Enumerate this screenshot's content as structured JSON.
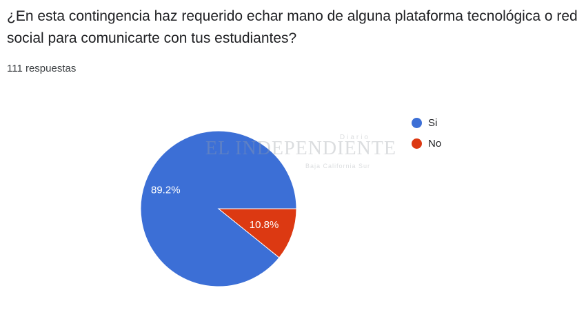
{
  "question": "¿En esta contingencia haz requerido echar mano de alguna plataforma tecnológica o red social para comunicarte con tus estudiantes?",
  "response_count": "111 respuestas",
  "watermark": {
    "top": "Diario",
    "main": "EL INDEPENDIENTE",
    "bottom": "Baja California Sur"
  },
  "chart_data": {
    "type": "pie",
    "slices": [
      {
        "label": "Si",
        "value": 89.2,
        "display": "89.2%",
        "color": "#3c6fd6"
      },
      {
        "label": "No",
        "value": 10.8,
        "display": "10.8%",
        "color": "#dc3912"
      }
    ],
    "legend_position": "right",
    "start_angle_deg": 0,
    "direction": "counterclockwise"
  }
}
